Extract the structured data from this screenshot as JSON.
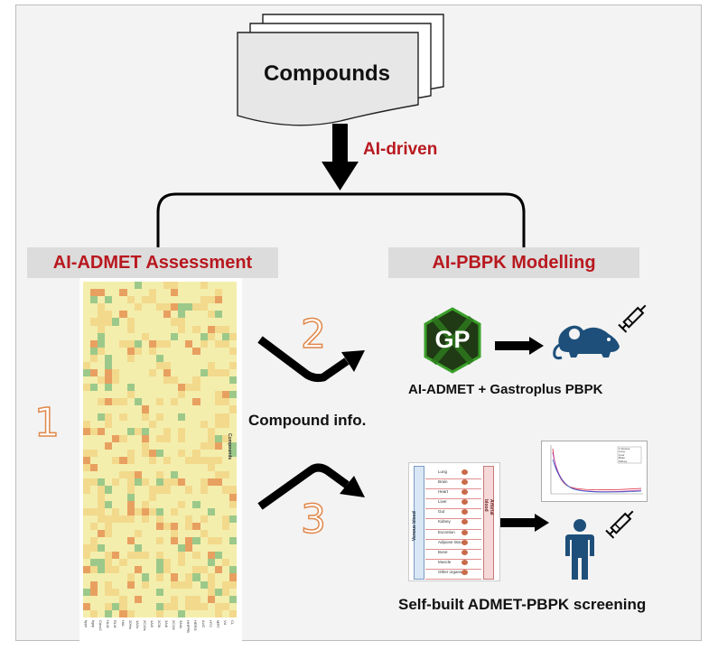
{
  "top": {
    "compounds_label": "Compounds",
    "arrow_label": "AI-driven"
  },
  "headers": {
    "left": "AI-ADMET Assessment",
    "right": "AI-PBPK Modelling"
  },
  "steps": {
    "one": "1",
    "two": "2",
    "three": "3"
  },
  "mid_label": "Compound info.",
  "gp_logo_text": "GP",
  "captions": {
    "gastroplus": "AI-ADMET + Gastroplus PBPK",
    "selfbuilt": "Self-built ADMET-PBPK screening"
  },
  "heatmap": {
    "column_labels": [
      "hppt",
      "hgrp",
      "Caco2",
      "HLM",
      "RLM",
      "HIA",
      "20%s",
      "1A2s",
      "2C19s",
      "1A2i",
      "2C9i",
      "3A4i",
      "2C19i",
      "3A4s",
      "HHPPB",
      "HERG",
      "AUC",
      "HT3",
      "MRT",
      "Vd",
      "CL"
    ],
    "row_axis_label": "Compounds",
    "colors": {
      "low": "#f4eead",
      "mid": "#f2d98c",
      "high": "#e8a060",
      "green": "#9cc98a"
    }
  },
  "pbpk_diagram": {
    "venous_label": "Venous blood",
    "arterial_label": "Arterial blood",
    "organs": [
      "Lung",
      "Brain",
      "Heart",
      "Liver",
      "Gut",
      "Kidney",
      "Excretion",
      "Adipose tissue",
      "Bone",
      "Muscle",
      "Other organs"
    ]
  },
  "graph_legend": [
    "1:Venous",
    "Lung",
    "Liver",
    "Brain",
    "Kidney"
  ]
}
